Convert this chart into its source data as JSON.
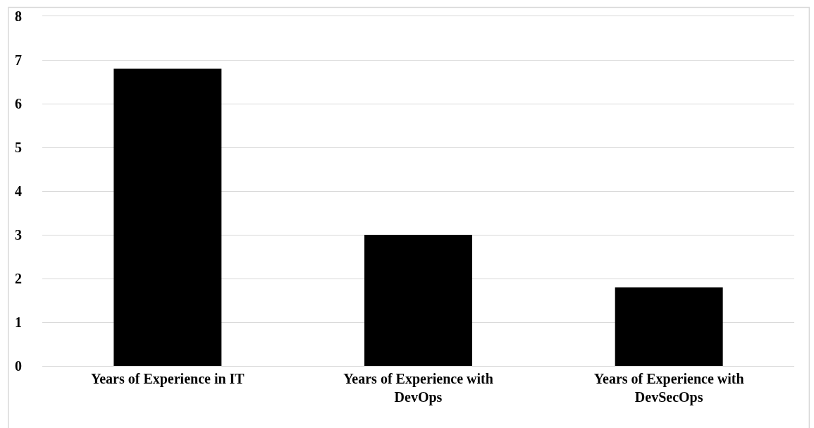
{
  "chart_data": {
    "type": "bar",
    "categories": [
      "Years of Experience in IT",
      "Years of Experience with DevOps",
      "Years of Experience with DevSecOps"
    ],
    "values": [
      6.8,
      3.0,
      1.8
    ],
    "color": "#000000",
    "ylim": [
      0,
      8
    ],
    "yticks": [
      0,
      1,
      2,
      3,
      4,
      5,
      6,
      7,
      8
    ],
    "grid": "y"
  }
}
